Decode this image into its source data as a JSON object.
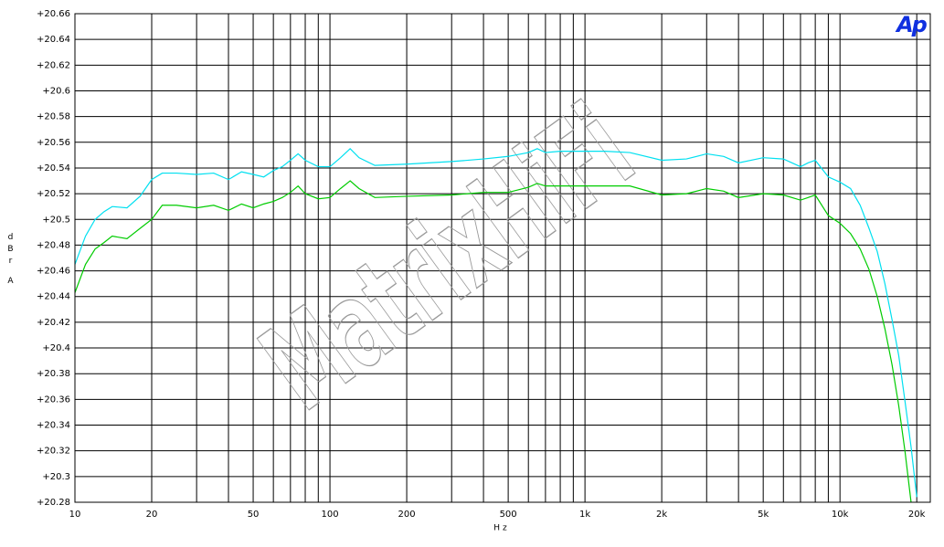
{
  "chart_data": {
    "type": "line",
    "ylabel": "dBr",
    "ylabel_unit": "A",
    "xlabel": "Hz",
    "logo": "Ap",
    "watermark": "MatrixHiFi",
    "xlog": true,
    "grid": true,
    "xlim": [
      10,
      22600
    ],
    "ylim": [
      20.28,
      20.66
    ],
    "xticks": [
      10,
      20,
      50,
      100,
      200,
      500,
      {
        "value": 1000,
        "label": "1k"
      },
      {
        "value": 2000,
        "label": "2k"
      },
      {
        "value": 5000,
        "label": "5k"
      },
      {
        "value": 10000,
        "label": "10k"
      },
      {
        "value": 20000,
        "label": "20k"
      }
    ],
    "xminor": [
      30,
      40,
      60,
      70,
      80,
      90,
      300,
      400,
      600,
      700,
      800,
      900,
      3000,
      4000,
      6000,
      7000,
      8000,
      9000
    ],
    "yticks": [
      {
        "value": 20.66,
        "label": "+20.66"
      },
      {
        "value": 20.64,
        "label": "+20.64"
      },
      {
        "value": 20.62,
        "label": "+20.62"
      },
      {
        "value": 20.6,
        "label": "+20.6"
      },
      {
        "value": 20.58,
        "label": "+20.58"
      },
      {
        "value": 20.56,
        "label": "+20.56"
      },
      {
        "value": 20.54,
        "label": "+20.54"
      },
      {
        "value": 20.52,
        "label": "+20.52"
      },
      {
        "value": 20.5,
        "label": "+20.5"
      },
      {
        "value": 20.48,
        "label": "+20.48"
      },
      {
        "value": 20.46,
        "label": "+20.46"
      },
      {
        "value": 20.44,
        "label": "+20.44"
      },
      {
        "value": 20.42,
        "label": "+20.42"
      },
      {
        "value": 20.4,
        "label": "+20.4"
      },
      {
        "value": 20.38,
        "label": "+20.38"
      },
      {
        "value": 20.36,
        "label": "+20.36"
      },
      {
        "value": 20.34,
        "label": "+20.34"
      },
      {
        "value": 20.32,
        "label": "+20.32"
      },
      {
        "value": 20.3,
        "label": "+20.3"
      },
      {
        "value": 20.28,
        "label": "+20.28"
      }
    ],
    "x": [
      10,
      11,
      12,
      13,
      14,
      16,
      18,
      20,
      22,
      25,
      30,
      35,
      40,
      45,
      50,
      55,
      60,
      65,
      70,
      75,
      80,
      90,
      100,
      110,
      120,
      130,
      150,
      200,
      300,
      400,
      500,
      600,
      650,
      700,
      800,
      1000,
      1200,
      1500,
      2000,
      2500,
      3000,
      3500,
      4000,
      5000,
      6000,
      7000,
      7500,
      8000,
      9000,
      10000,
      11000,
      12000,
      13000,
      14000,
      15000,
      16000,
      17000,
      18000,
      19000,
      20000
    ],
    "series": [
      {
        "color": "#00e0f0",
        "values": [
          20.465,
          20.487,
          20.5,
          20.506,
          20.51,
          20.509,
          20.518,
          20.531,
          20.536,
          20.536,
          20.535,
          20.536,
          20.531,
          20.537,
          20.535,
          20.533,
          20.538,
          20.541,
          20.546,
          20.551,
          20.546,
          20.541,
          20.541,
          20.548,
          20.555,
          20.548,
          20.542,
          20.543,
          20.545,
          20.547,
          20.549,
          20.552,
          20.555,
          20.552,
          20.553,
          20.553,
          20.553,
          20.552,
          20.546,
          20.547,
          20.551,
          20.549,
          20.544,
          20.548,
          20.547,
          20.541,
          20.544,
          20.546,
          20.533,
          20.529,
          20.524,
          20.511,
          20.493,
          20.475,
          20.45,
          20.422,
          20.394,
          20.358,
          20.323,
          20.284
        ]
      },
      {
        "color": "#00cc00",
        "values": [
          20.443,
          20.465,
          20.477,
          20.482,
          20.487,
          20.485,
          20.493,
          20.5,
          20.511,
          20.511,
          20.509,
          20.511,
          20.507,
          20.512,
          20.509,
          20.512,
          20.514,
          20.517,
          20.521,
          20.526,
          20.52,
          20.516,
          20.517,
          20.524,
          20.53,
          20.524,
          20.517,
          20.518,
          20.519,
          20.521,
          20.521,
          20.525,
          20.528,
          20.526,
          20.526,
          20.526,
          20.526,
          20.526,
          20.519,
          20.52,
          20.524,
          20.522,
          20.517,
          20.52,
          20.519,
          20.515,
          20.517,
          20.519,
          20.503,
          20.497,
          20.489,
          20.477,
          20.461,
          20.44,
          20.415,
          20.387,
          20.355,
          20.319,
          20.28,
          null
        ]
      }
    ]
  }
}
